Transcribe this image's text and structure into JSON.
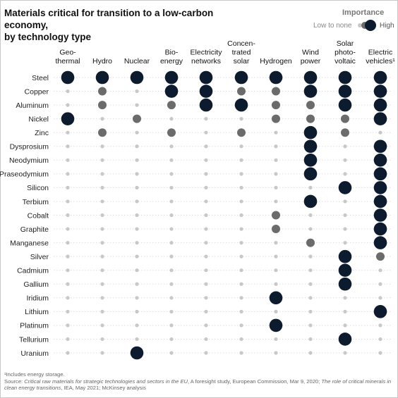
{
  "title_lines": [
    "Materials critical for transition to a low-carbon economy,",
    "by technology type"
  ],
  "legend": {
    "title": "Importance",
    "low_label": "Low to none",
    "high_label": "High"
  },
  "colors": {
    "high": "#0d1b2e",
    "medium": "#6b6b6b",
    "low": "#c8c8c8",
    "grid": "#dddddd"
  },
  "footnote": {
    "note": "¹Includes energy storage.",
    "source_prefix": "Source: ",
    "source_italic_1": "Critical raw materials for strategic technologies and sectors in the EU",
    "source_mid": ", A foresight study, European Commission, Mar 9, 2020; ",
    "source_italic_2": "The role of critical minerals in clean energy transitions",
    "source_end": ", IEA, May 2021; McKinsey analysis"
  },
  "chart_data": {
    "type": "dot-matrix",
    "levels": {
      "0": "Low to none",
      "1": "Medium",
      "2": "High"
    },
    "columns": [
      [
        "Geo-",
        "thermal"
      ],
      [
        "Hydro"
      ],
      [
        "Nuclear"
      ],
      [
        "Bio-",
        "energy"
      ],
      [
        "Electricity",
        "networks"
      ],
      [
        "Concen-",
        "trated",
        "solar"
      ],
      [
        "Hydrogen"
      ],
      [
        "Wind",
        "power"
      ],
      [
        "Solar",
        "photo-",
        "voltaic"
      ],
      [
        "Electric",
        "vehicles¹"
      ]
    ],
    "rows": [
      {
        "material": "Steel",
        "values": [
          2,
          2,
          2,
          2,
          2,
          2,
          2,
          2,
          2,
          2
        ]
      },
      {
        "material": "Copper",
        "values": [
          0,
          1,
          0,
          2,
          2,
          1,
          1,
          2,
          2,
          2
        ]
      },
      {
        "material": "Aluminum",
        "values": [
          0,
          1,
          0,
          1,
          2,
          2,
          1,
          1,
          2,
          2
        ]
      },
      {
        "material": "Nickel",
        "values": [
          2,
          0,
          1,
          0,
          0,
          0,
          1,
          1,
          1,
          2
        ]
      },
      {
        "material": "Zinc",
        "values": [
          0,
          1,
          0,
          1,
          0,
          1,
          0,
          2,
          1,
          0
        ]
      },
      {
        "material": "Dysprosium",
        "values": [
          0,
          0,
          0,
          0,
          0,
          0,
          0,
          2,
          0,
          2
        ]
      },
      {
        "material": "Neodymium",
        "values": [
          0,
          0,
          0,
          0,
          0,
          0,
          0,
          2,
          0,
          2
        ]
      },
      {
        "material": "Praseodymium",
        "values": [
          0,
          0,
          0,
          0,
          0,
          0,
          0,
          2,
          0,
          2
        ]
      },
      {
        "material": "Silicon",
        "values": [
          0,
          0,
          0,
          0,
          0,
          0,
          0,
          0,
          2,
          2
        ]
      },
      {
        "material": "Terbium",
        "values": [
          0,
          0,
          0,
          0,
          0,
          0,
          0,
          2,
          0,
          2
        ]
      },
      {
        "material": "Cobalt",
        "values": [
          0,
          0,
          0,
          0,
          0,
          0,
          1,
          0,
          0,
          2
        ]
      },
      {
        "material": "Graphite",
        "values": [
          0,
          0,
          0,
          0,
          0,
          0,
          1,
          0,
          0,
          2
        ]
      },
      {
        "material": "Manganese",
        "values": [
          0,
          0,
          0,
          0,
          0,
          0,
          0,
          1,
          0,
          2
        ]
      },
      {
        "material": "Silver",
        "values": [
          0,
          0,
          0,
          0,
          0,
          0,
          0,
          0,
          2,
          1
        ]
      },
      {
        "material": "Cadmium",
        "values": [
          0,
          0,
          0,
          0,
          0,
          0,
          0,
          0,
          2,
          0
        ]
      },
      {
        "material": "Gallium",
        "values": [
          0,
          0,
          0,
          0,
          0,
          0,
          0,
          0,
          2,
          0
        ]
      },
      {
        "material": "Iridium",
        "values": [
          0,
          0,
          0,
          0,
          0,
          0,
          2,
          0,
          0,
          0
        ]
      },
      {
        "material": "Lithium",
        "values": [
          0,
          0,
          0,
          0,
          0,
          0,
          0,
          0,
          0,
          2
        ]
      },
      {
        "material": "Platinum",
        "values": [
          0,
          0,
          0,
          0,
          0,
          0,
          2,
          0,
          0,
          0
        ]
      },
      {
        "material": "Tellurium",
        "values": [
          0,
          0,
          0,
          0,
          0,
          0,
          0,
          0,
          2,
          0
        ]
      },
      {
        "material": "Uranium",
        "values": [
          0,
          0,
          2,
          0,
          0,
          0,
          0,
          0,
          0,
          0
        ]
      }
    ]
  }
}
